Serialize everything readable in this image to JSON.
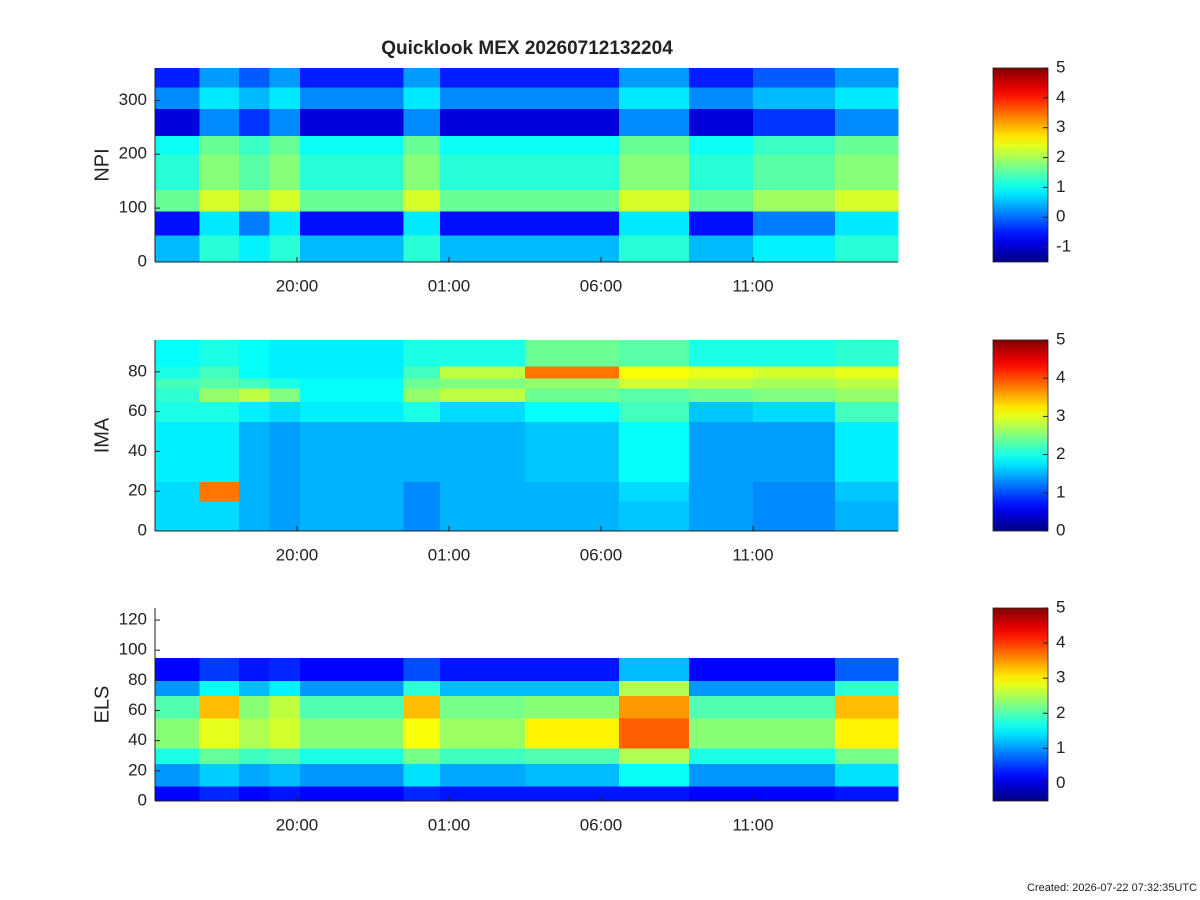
{
  "chart_data": [
    {
      "type": "heatmap",
      "title": "Quicklook MEX 20260712132204",
      "ylabel": "NPI",
      "colormap": "jet",
      "xlim": [
        15.33,
        39.77
      ],
      "xticks": [
        {
          "value": 20,
          "label": "20:00"
        },
        {
          "value": 25,
          "label": "01:00"
        },
        {
          "value": 30,
          "label": "06:00"
        },
        {
          "value": 35,
          "label": "11:00"
        }
      ],
      "ylim": [
        0,
        360
      ],
      "yticks": [
        0,
        100,
        200,
        300
      ],
      "clim": [
        -1.5,
        5
      ],
      "cticks": [
        -1,
        0,
        1,
        2,
        3,
        4,
        5
      ],
      "xbins": [
        15.33,
        16.8,
        18.1,
        19.1,
        20.1,
        23.5,
        24.7,
        27.5,
        30.6,
        32.9,
        35,
        37.7,
        39.77
      ],
      "ybins": [
        0,
        50,
        95,
        135,
        200,
        235,
        285,
        325,
        360
      ],
      "z": [
        [
          0.5,
          -0.6,
          1.6,
          1.2,
          1.0,
          -0.9,
          0.2,
          -0.5
        ],
        [
          1.2,
          0.8,
          2.3,
          1.8,
          1.6,
          0.2,
          0.8,
          0.3
        ],
        [
          0.85,
          0.1,
          1.95,
          1.5,
          1.3,
          -0.35,
          0.5,
          -0.1
        ],
        [
          1.2,
          0.8,
          2.3,
          1.8,
          1.6,
          0.2,
          0.8,
          0.3
        ],
        [
          0.5,
          -0.6,
          1.6,
          1.2,
          1.0,
          -0.9,
          0.2,
          -0.5
        ],
        [
          1.2,
          0.8,
          2.3,
          1.8,
          1.6,
          0.2,
          0.8,
          0.3
        ],
        [
          0.5,
          -0.6,
          1.6,
          1.2,
          1.0,
          -0.9,
          0.2,
          -0.5
        ],
        [
          0.5,
          -0.6,
          1.6,
          1.2,
          1.0,
          -0.9,
          0.2,
          -0.5
        ],
        [
          1.2,
          0.8,
          2.3,
          1.8,
          1.6,
          0.2,
          0.8,
          0.3
        ],
        [
          0.5,
          -0.6,
          1.6,
          1.2,
          1.0,
          -0.9,
          0.2,
          -0.5
        ],
        [
          0.85,
          0.1,
          1.95,
          1.5,
          1.3,
          -0.35,
          0.5,
          -0.1
        ],
        [
          1.2,
          0.8,
          2.3,
          1.8,
          1.6,
          0.2,
          0.8,
          0.3
        ]
      ]
    },
    {
      "type": "heatmap",
      "ylabel": "IMA",
      "colormap": "jet",
      "xlim": [
        15.33,
        39.77
      ],
      "xticks": [
        {
          "value": 20,
          "label": "20:00"
        },
        {
          "value": 25,
          "label": "01:00"
        },
        {
          "value": 30,
          "label": "06:00"
        },
        {
          "value": 35,
          "label": "11:00"
        }
      ],
      "ylim": [
        0,
        96
      ],
      "yticks": [
        0,
        20,
        40,
        60,
        80
      ],
      "clim": [
        0,
        5
      ],
      "cticks": [
        0,
        1,
        2,
        3,
        4,
        5
      ],
      "xbins": [
        15.33,
        16.8,
        18.1,
        19.1,
        20.1,
        23.5,
        24.7,
        27.5,
        30.6,
        32.9,
        35,
        37.7,
        39.77
      ],
      "ybins": [
        0,
        15,
        25,
        55,
        65,
        72,
        77,
        83,
        96
      ],
      "z": [
        [
          1.7,
          1.7,
          1.8,
          2.0,
          2.1,
          2.2,
          2.0,
          1.9
        ],
        [
          1.7,
          3.8,
          1.8,
          2.0,
          2.6,
          2.3,
          2.2,
          2.0
        ],
        [
          1.5,
          1.5,
          1.5,
          1.8,
          2.8,
          2.2,
          1.9,
          1.9
        ],
        [
          1.4,
          1.4,
          1.4,
          1.7,
          2.5,
          2.0,
          1.8,
          1.8
        ],
        [
          1.5,
          1.5,
          1.5,
          1.8,
          1.9,
          1.9,
          1.8,
          1.8
        ],
        [
          1.3,
          1.3,
          1.5,
          2.0,
          2.6,
          2.4,
          2.2,
          2.0
        ],
        [
          1.5,
          1.5,
          1.5,
          1.7,
          2.8,
          2.5,
          2.8,
          2.0
        ],
        [
          1.5,
          1.5,
          1.6,
          1.9,
          2.4,
          2.6,
          3.8,
          2.4
        ],
        [
          1.6,
          1.7,
          1.9,
          2.2,
          2.3,
          2.9,
          3.1,
          2.3
        ],
        [
          1.4,
          1.4,
          1.4,
          1.6,
          2.4,
          2.8,
          3.0,
          2.0
        ],
        [
          1.3,
          1.3,
          1.4,
          1.7,
          2.5,
          2.7,
          2.9,
          2.0
        ],
        [
          1.5,
          1.6,
          1.8,
          2.2,
          2.6,
          2.8,
          3.0,
          2.1
        ]
      ]
    },
    {
      "type": "heatmap",
      "ylabel": "ELS",
      "colormap": "jet",
      "xlim": [
        15.33,
        39.77
      ],
      "xticks": [
        {
          "value": 20,
          "label": "20:00"
        },
        {
          "value": 25,
          "label": "01:00"
        },
        {
          "value": 30,
          "label": "06:00"
        },
        {
          "value": 35,
          "label": "11:00"
        }
      ],
      "ylim": [
        0,
        128
      ],
      "yticks": [
        0,
        20,
        40,
        60,
        80,
        100,
        120
      ],
      "clim": [
        -0.5,
        5
      ],
      "cticks": [
        0,
        1,
        2,
        3,
        4,
        5
      ],
      "xbins": [
        15.33,
        16.8,
        18.1,
        19.1,
        20.1,
        23.5,
        24.7,
        27.5,
        30.6,
        32.9,
        35,
        37.7,
        39.77
      ],
      "ybins": [
        0,
        10,
        25,
        35,
        55,
        70,
        80,
        95,
        128
      ],
      "z": [
        [
          0.2,
          1.0,
          1.7,
          2.3,
          2.0,
          1.0,
          0.2,
          null
        ],
        [
          0.4,
          1.3,
          2.1,
          2.8,
          3.3,
          1.6,
          0.5,
          null
        ],
        [
          0.2,
          1.1,
          1.9,
          2.5,
          2.3,
          1.2,
          0.3,
          null
        ],
        [
          0.3,
          1.2,
          2.0,
          2.7,
          2.6,
          1.5,
          0.4,
          null
        ],
        [
          0.2,
          1.0,
          1.7,
          2.3,
          2.0,
          1.0,
          0.2,
          null
        ],
        [
          0.4,
          1.4,
          2.2,
          2.9,
          3.3,
          1.8,
          0.6,
          null
        ],
        [
          0.3,
          1.1,
          1.9,
          2.4,
          2.2,
          1.2,
          0.3,
          null
        ],
        [
          0.3,
          1.2,
          2.0,
          3.0,
          2.3,
          1.2,
          0.3,
          null
        ],
        [
          0.3,
          1.6,
          2.5,
          3.8,
          3.5,
          2.5,
          1.2,
          null
        ],
        [
          0.2,
          1.0,
          1.7,
          2.3,
          2.0,
          1.0,
          0.2,
          null
        ],
        [
          0.2,
          1.0,
          1.7,
          2.3,
          2.0,
          1.0,
          0.2,
          null
        ],
        [
          0.3,
          1.4,
          2.2,
          3.0,
          3.3,
          1.8,
          0.7,
          null
        ]
      ]
    }
  ],
  "footer": "Created: 2026-07-22 07:32:35UTC"
}
